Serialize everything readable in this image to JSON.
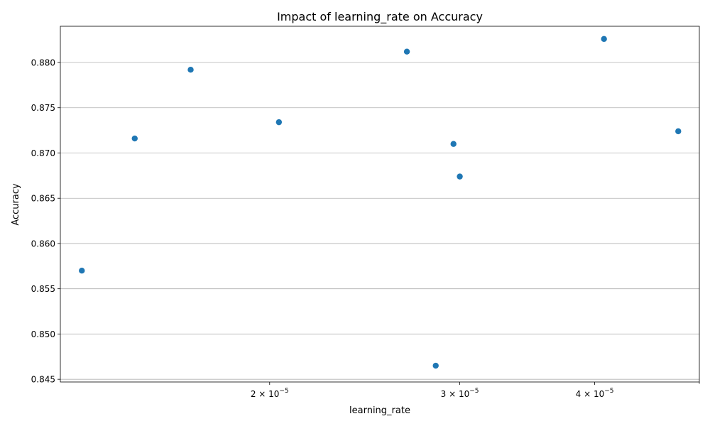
{
  "chart_data": {
    "type": "scatter",
    "title": "Impact of learning_rate on Accuracy",
    "xlabel": "learning_rate",
    "ylabel": "Accuracy",
    "x_scale": "log",
    "xlim": [
      1.28e-05,
      5e-05
    ],
    "ylim": [
      0.8447,
      0.884
    ],
    "grid": "y-major",
    "marker_color": "#1f77b4",
    "x_ticks": [
      {
        "value": 2e-05,
        "mantissa": "2",
        "exponent": "−5",
        "label": "2 × 10^−5"
      },
      {
        "value": 3e-05,
        "mantissa": "3",
        "exponent": "−5",
        "label": "3 × 10^−5"
      },
      {
        "value": 4e-05,
        "mantissa": "4",
        "exponent": "−5",
        "label": "4 × 10^−5"
      }
    ],
    "x_ticks_unlabeled": [
      5e-05
    ],
    "y_ticks": [
      {
        "value": 0.845,
        "label": "0.845"
      },
      {
        "value": 0.85,
        "label": "0.850"
      },
      {
        "value": 0.855,
        "label": "0.855"
      },
      {
        "value": 0.86,
        "label": "0.860"
      },
      {
        "value": 0.865,
        "label": "0.865"
      },
      {
        "value": 0.87,
        "label": "0.870"
      },
      {
        "value": 0.875,
        "label": "0.875"
      },
      {
        "value": 0.88,
        "label": "0.880"
      }
    ],
    "points": [
      {
        "x": 1.34e-05,
        "y": 0.857
      },
      {
        "x": 1.5e-05,
        "y": 0.8716
      },
      {
        "x": 1.69e-05,
        "y": 0.8792
      },
      {
        "x": 2.04e-05,
        "y": 0.8734
      },
      {
        "x": 2.68e-05,
        "y": 0.8812
      },
      {
        "x": 2.85e-05,
        "y": 0.8465
      },
      {
        "x": 2.96e-05,
        "y": 0.871
      },
      {
        "x": 3e-05,
        "y": 0.8674
      },
      {
        "x": 4.08e-05,
        "y": 0.8826
      },
      {
        "x": 4.78e-05,
        "y": 0.8724
      }
    ]
  }
}
